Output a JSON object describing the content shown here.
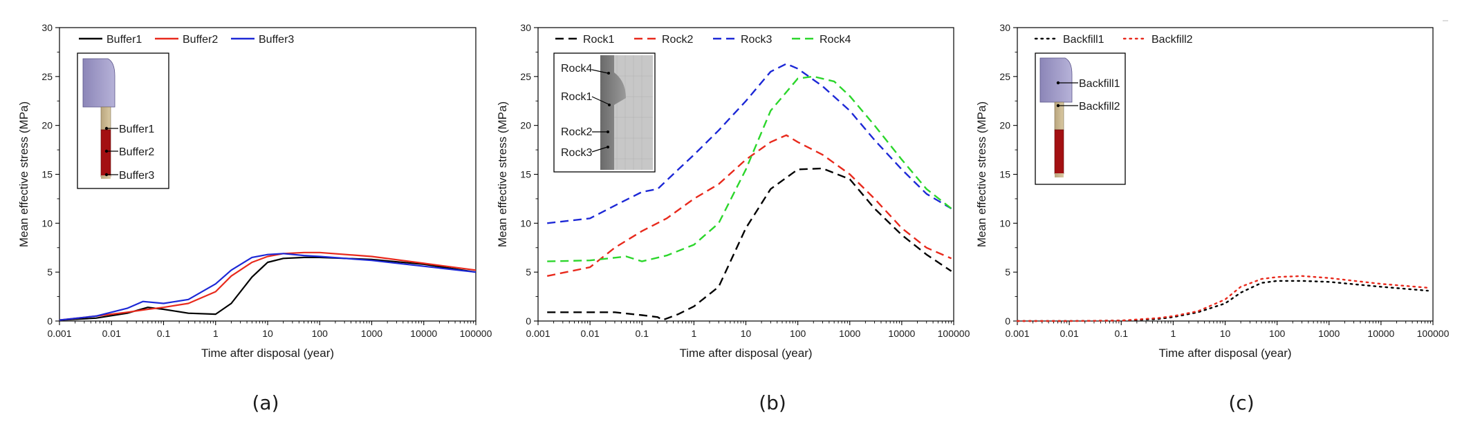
{
  "figure": {
    "panel_labels": [
      "(a)",
      "(b)",
      "(c)"
    ]
  },
  "chart_data": [
    {
      "type": "line",
      "panel": "(a)",
      "xlabel": "Time after disposal (year)",
      "ylabel": "Mean effective stress (MPa)",
      "xscale": "log",
      "xlim": [
        0.001,
        100000
      ],
      "ylim": [
        0,
        30
      ],
      "x_tick_labels": [
        "0.001",
        "0.01",
        "0.1",
        "1",
        "10",
        "100",
        "1000",
        "10000",
        "100000"
      ],
      "y_tick_labels": [
        "0",
        "5",
        "10",
        "15",
        "20",
        "25",
        "30"
      ],
      "legend_position": "top-left",
      "series": [
        {
          "name": "Buffer1",
          "color": "#000000",
          "style": "solid",
          "x": [
            0.001,
            0.005,
            0.02,
            0.05,
            0.1,
            0.3,
            1,
            2,
            5,
            10,
            20,
            50,
            100,
            1000,
            10000,
            100000
          ],
          "y": [
            0.1,
            0.3,
            0.8,
            1.4,
            1.2,
            0.8,
            0.7,
            1.8,
            4.5,
            6.0,
            6.4,
            6.5,
            6.5,
            6.3,
            5.8,
            5.0
          ]
        },
        {
          "name": "Buffer2",
          "color": "#e8291c",
          "style": "solid",
          "x": [
            0.001,
            0.005,
            0.02,
            0.05,
            0.1,
            0.3,
            1,
            2,
            5,
            10,
            20,
            50,
            100,
            1000,
            10000,
            100000
          ],
          "y": [
            0.1,
            0.5,
            0.9,
            1.2,
            1.4,
            1.8,
            3.0,
            4.6,
            6.0,
            6.6,
            6.9,
            7.0,
            7.0,
            6.6,
            5.9,
            5.2
          ]
        },
        {
          "name": "Buffer3",
          "color": "#1c28d6",
          "style": "solid",
          "x": [
            0.001,
            0.005,
            0.02,
            0.04,
            0.1,
            0.3,
            1,
            2,
            5,
            10,
            20,
            50,
            100,
            1000,
            10000,
            100000
          ],
          "y": [
            0.1,
            0.5,
            1.3,
            2.0,
            1.8,
            2.2,
            3.8,
            5.2,
            6.5,
            6.8,
            6.9,
            6.7,
            6.6,
            6.2,
            5.6,
            5.0
          ]
        }
      ],
      "inset": {
        "labels": [
          "Buffer1",
          "Buffer2",
          "Buffer3"
        ]
      }
    },
    {
      "type": "line",
      "panel": "(b)",
      "xlabel": "Time after disposal (year)",
      "ylabel": "Mean effective stress (MPa)",
      "xscale": "log",
      "xlim": [
        0.001,
        100000
      ],
      "ylim": [
        0,
        30
      ],
      "x_tick_labels": [
        "0.001",
        "0.01",
        "0.1",
        "1",
        "10",
        "100",
        "1000",
        "10000",
        "100000"
      ],
      "y_tick_labels": [
        "0",
        "5",
        "10",
        "15",
        "20",
        "25",
        "30"
      ],
      "legend_position": "top-left",
      "series": [
        {
          "name": "Rock1",
          "color": "#000000",
          "style": "dashed",
          "x": [
            0.0015,
            0.01,
            0.03,
            0.1,
            0.2,
            0.25,
            0.5,
            1,
            3,
            10,
            30,
            100,
            300,
            1000,
            3000,
            10000,
            30000,
            90000
          ],
          "y": [
            0.9,
            0.9,
            0.9,
            0.6,
            0.4,
            0.1,
            0.7,
            1.5,
            3.5,
            9.5,
            13.5,
            15.5,
            15.6,
            14.5,
            11.5,
            8.8,
            6.8,
            5.1
          ]
        },
        {
          "name": "Rock2",
          "color": "#e8291c",
          "style": "dashed",
          "x": [
            0.0015,
            0.01,
            0.03,
            0.1,
            0.3,
            1,
            3,
            10,
            30,
            60,
            100,
            300,
            1000,
            3000,
            10000,
            30000,
            90000
          ],
          "y": [
            4.6,
            5.5,
            7.5,
            9.2,
            10.5,
            12.5,
            14.0,
            16.5,
            18.3,
            19.0,
            18.3,
            17.0,
            15.0,
            12.5,
            9.5,
            7.5,
            6.4
          ]
        },
        {
          "name": "Rock3",
          "color": "#1c28d6",
          "style": "dashed",
          "x": [
            0.0015,
            0.01,
            0.03,
            0.1,
            0.2,
            0.5,
            1,
            3,
            10,
            30,
            60,
            100,
            300,
            1000,
            3000,
            10000,
            30000,
            90000
          ],
          "y": [
            10.0,
            10.5,
            11.8,
            13.2,
            13.5,
            15.5,
            17.0,
            19.5,
            22.5,
            25.5,
            26.3,
            25.8,
            24.0,
            21.5,
            18.5,
            15.5,
            13.0,
            11.5
          ]
        },
        {
          "name": "Rock4",
          "color": "#2bd62b",
          "style": "dashed",
          "x": [
            0.0015,
            0.01,
            0.05,
            0.1,
            0.3,
            1,
            3,
            10,
            30,
            100,
            200,
            500,
            1000,
            3000,
            10000,
            30000,
            90000
          ],
          "y": [
            6.1,
            6.2,
            6.6,
            6.1,
            6.7,
            7.8,
            10.0,
            15.5,
            21.5,
            24.8,
            25.0,
            24.5,
            23.0,
            20.0,
            16.5,
            13.5,
            11.5
          ]
        }
      ],
      "inset": {
        "labels": [
          "Rock4",
          "Rock1",
          "Rock2",
          "Rock3"
        ]
      }
    },
    {
      "type": "line",
      "panel": "(c)",
      "xlabel": "Time after disposal (year)",
      "ylabel": "Mean effective stress (MPa)",
      "xscale": "log",
      "xlim": [
        0.001,
        100000
      ],
      "ylim": [
        0,
        30
      ],
      "x_tick_labels": [
        "0.001",
        "0.01",
        "0.1",
        "1",
        "10",
        "100",
        "1000",
        "10000",
        "100000"
      ],
      "y_tick_labels": [
        "0",
        "5",
        "10",
        "15",
        "20",
        "25",
        "30"
      ],
      "legend_position": "top-left",
      "series": [
        {
          "name": "Backfill1",
          "color": "#000000",
          "style": "dotted",
          "x": [
            0.001,
            0.01,
            0.1,
            0.5,
            1,
            3,
            10,
            20,
            50,
            100,
            300,
            1000,
            10000,
            80000
          ],
          "y": [
            0.0,
            0.0,
            0.05,
            0.2,
            0.4,
            0.9,
            1.8,
            2.9,
            3.9,
            4.1,
            4.1,
            4.0,
            3.5,
            3.1
          ]
        },
        {
          "name": "Backfill2",
          "color": "#e8291c",
          "style": "dotted",
          "x": [
            0.001,
            0.01,
            0.1,
            0.5,
            1,
            3,
            10,
            20,
            50,
            100,
            300,
            1000,
            10000,
            80000
          ],
          "y": [
            0.0,
            0.0,
            0.05,
            0.3,
            0.5,
            1.0,
            2.2,
            3.5,
            4.3,
            4.5,
            4.6,
            4.4,
            3.8,
            3.4
          ]
        }
      ],
      "inset": {
        "labels": [
          "Backfill1",
          "Backfill2"
        ]
      }
    }
  ]
}
